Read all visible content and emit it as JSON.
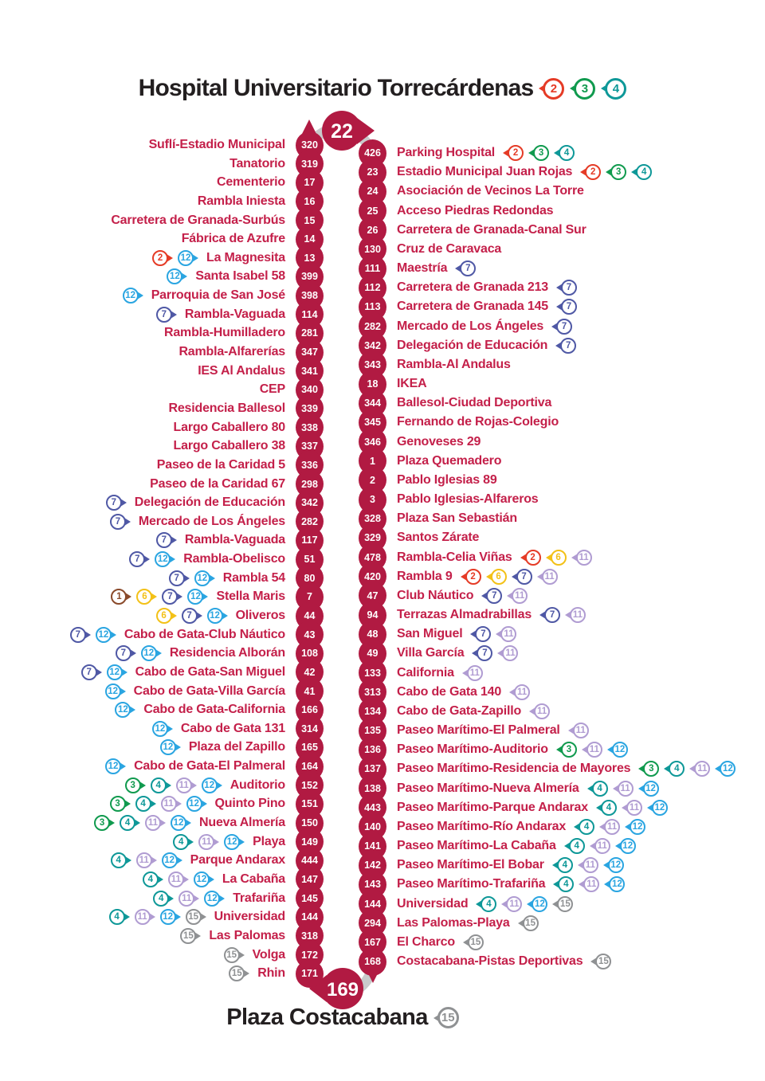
{
  "title": {
    "text": "Hospital Universitario Torrecárdenas",
    "lines": [
      "2",
      "3",
      "4"
    ]
  },
  "terminus_top": "22",
  "terminus_bottom": "169",
  "bottom_title": {
    "text": "Plaza Costacabana",
    "lines": [
      "15"
    ]
  },
  "colors": {
    "route": "#b11a42",
    "stop_text": "#c4204a",
    "arc": "#c9cacb",
    "title_text": "#231f20",
    "lines": {
      "1": "#8a4a2b",
      "2": "#e53b26",
      "3": "#109a4e",
      "4": "#0e9898",
      "6": "#f3c117",
      "7": "#4f58a5",
      "11": "#b09cd2",
      "12": "#2aa5e1",
      "15": "#8f9193"
    }
  },
  "stops": {
    "left": [
      {
        "num": "320",
        "name": "Suflí-Estadio Municipal",
        "badges": []
      },
      {
        "num": "319",
        "name": "Tanatorio",
        "badges": []
      },
      {
        "num": "17",
        "name": "Cementerio",
        "badges": []
      },
      {
        "num": "16",
        "name": "Rambla Iniesta",
        "badges": []
      },
      {
        "num": "15",
        "name": "Carretera de Granada-Surbús",
        "badges": []
      },
      {
        "num": "14",
        "name": "Fábrica de Azufre",
        "badges": []
      },
      {
        "num": "13",
        "name": "La Magnesita",
        "badges": [
          "2",
          "12"
        ]
      },
      {
        "num": "399",
        "name": "Santa Isabel 58",
        "badges": [
          "12"
        ]
      },
      {
        "num": "398",
        "name": "Parroquia de San José",
        "badges": [
          "12"
        ]
      },
      {
        "num": "114",
        "name": "Rambla-Vaguada",
        "badges": [
          "7"
        ]
      },
      {
        "num": "281",
        "name": "Rambla-Humilladero",
        "badges": []
      },
      {
        "num": "347",
        "name": "Rambla-Alfarerías",
        "badges": []
      },
      {
        "num": "341",
        "name": "IES Al Andalus",
        "badges": []
      },
      {
        "num": "340",
        "name": "CEP",
        "badges": []
      },
      {
        "num": "339",
        "name": "Residencia Ballesol",
        "badges": []
      },
      {
        "num": "338",
        "name": "Largo Caballero 80",
        "badges": []
      },
      {
        "num": "337",
        "name": "Largo Caballero 38",
        "badges": []
      },
      {
        "num": "336",
        "name": "Paseo de la Caridad 5",
        "badges": []
      },
      {
        "num": "298",
        "name": "Paseo de la Caridad 67",
        "badges": []
      },
      {
        "num": "342",
        "name": "Delegación de Educación",
        "badges": [
          "7"
        ]
      },
      {
        "num": "282",
        "name": "Mercado de Los Ángeles",
        "badges": [
          "7"
        ]
      },
      {
        "num": "117",
        "name": "Rambla-Vaguada",
        "badges": [
          "7"
        ]
      },
      {
        "num": "51",
        "name": "Rambla-Obelisco",
        "badges": [
          "7",
          "12"
        ]
      },
      {
        "num": "80",
        "name": "Rambla 54",
        "badges": [
          "7",
          "12"
        ]
      },
      {
        "num": "7",
        "name": "Stella Maris",
        "badges": [
          "1",
          "6",
          "7",
          "12"
        ]
      },
      {
        "num": "44",
        "name": "Oliveros",
        "badges": [
          "6",
          "7",
          "12"
        ]
      },
      {
        "num": "43",
        "name": "Cabo de Gata-Club Náutico",
        "badges": [
          "7",
          "12"
        ]
      },
      {
        "num": "108",
        "name": "Residencia Alborán",
        "badges": [
          "7",
          "12"
        ]
      },
      {
        "num": "42",
        "name": "Cabo de Gata-San Miguel",
        "badges": [
          "7",
          "12"
        ]
      },
      {
        "num": "41",
        "name": "Cabo de Gata-Villa García",
        "badges": [
          "12"
        ]
      },
      {
        "num": "166",
        "name": "Cabo de Gata-California",
        "badges": [
          "12"
        ]
      },
      {
        "num": "314",
        "name": "Cabo de Gata 131",
        "badges": [
          "12"
        ]
      },
      {
        "num": "165",
        "name": "Plaza del Zapillo",
        "badges": [
          "12"
        ]
      },
      {
        "num": "164",
        "name": "Cabo de Gata-El Palmeral",
        "badges": [
          "12"
        ]
      },
      {
        "num": "152",
        "name": "Auditorio",
        "badges": [
          "3",
          "4",
          "11",
          "12"
        ]
      },
      {
        "num": "151",
        "name": "Quinto Pino",
        "badges": [
          "3",
          "4",
          "11",
          "12"
        ]
      },
      {
        "num": "150",
        "name": "Nueva Almería",
        "badges": [
          "3",
          "4",
          "11",
          "12"
        ]
      },
      {
        "num": "149",
        "name": "Playa",
        "badges": [
          "4",
          "11",
          "12"
        ]
      },
      {
        "num": "444",
        "name": "Parque Andarax",
        "badges": [
          "4",
          "11",
          "12"
        ]
      },
      {
        "num": "147",
        "name": "La Cabaña",
        "badges": [
          "4",
          "11",
          "12"
        ]
      },
      {
        "num": "145",
        "name": "Trafariña",
        "badges": [
          "4",
          "11",
          "12"
        ]
      },
      {
        "num": "144",
        "name": "Universidad",
        "badges": [
          "4",
          "11",
          "12",
          "15"
        ]
      },
      {
        "num": "318",
        "name": "Las Palomas",
        "badges": [
          "15"
        ]
      },
      {
        "num": "172",
        "name": "Volga",
        "badges": [
          "15"
        ]
      },
      {
        "num": "171",
        "name": "Rhin",
        "badges": [
          "15"
        ]
      }
    ],
    "right": [
      {
        "num": "426",
        "name": "Parking Hospital",
        "badges": [
          "2",
          "3",
          "4"
        ]
      },
      {
        "num": "23",
        "name": "Estadio Municipal Juan Rojas",
        "badges": [
          "2",
          "3",
          "4"
        ]
      },
      {
        "num": "24",
        "name": "Asociación de Vecinos La Torre",
        "badges": []
      },
      {
        "num": "25",
        "name": "Acceso Piedras Redondas",
        "badges": []
      },
      {
        "num": "26",
        "name": "Carretera de Granada-Canal Sur",
        "badges": []
      },
      {
        "num": "130",
        "name": "Cruz de Caravaca",
        "badges": []
      },
      {
        "num": "111",
        "name": "Maestría",
        "badges": [
          "7"
        ]
      },
      {
        "num": "112",
        "name": "Carretera de Granada 213",
        "badges": [
          "7"
        ]
      },
      {
        "num": "113",
        "name": "Carretera de Granada 145",
        "badges": [
          "7"
        ]
      },
      {
        "num": "282",
        "name": "Mercado de Los Ángeles",
        "badges": [
          "7"
        ]
      },
      {
        "num": "342",
        "name": "Delegación de Educación",
        "badges": [
          "7"
        ]
      },
      {
        "num": "343",
        "name": "Rambla-Al Andalus",
        "badges": []
      },
      {
        "num": "18",
        "name": "IKEA",
        "badges": []
      },
      {
        "num": "344",
        "name": "Ballesol-Ciudad Deportiva",
        "badges": []
      },
      {
        "num": "345",
        "name": "Fernando de Rojas-Colegio",
        "badges": []
      },
      {
        "num": "346",
        "name": "Genoveses 29",
        "badges": []
      },
      {
        "num": "1",
        "name": "Plaza Quemadero",
        "badges": []
      },
      {
        "num": "2",
        "name": "Pablo Iglesias 89",
        "badges": []
      },
      {
        "num": "3",
        "name": "Pablo Iglesias-Alfareros",
        "badges": []
      },
      {
        "num": "328",
        "name": "Plaza San Sebastián",
        "badges": []
      },
      {
        "num": "329",
        "name": "Santos Zárate",
        "badges": []
      },
      {
        "num": "478",
        "name": "Rambla-Celia Viñas",
        "badges": [
          "2",
          "6",
          "11"
        ]
      },
      {
        "num": "420",
        "name": "Rambla 9",
        "badges": [
          "2",
          "6",
          "7",
          "11"
        ]
      },
      {
        "num": "47",
        "name": "Club Náutico",
        "badges": [
          "7",
          "11"
        ]
      },
      {
        "num": "94",
        "name": "Terrazas Almadrabillas",
        "badges": [
          "7",
          "11"
        ]
      },
      {
        "num": "48",
        "name": "San Miguel",
        "badges": [
          "7",
          "11"
        ]
      },
      {
        "num": "49",
        "name": "Villa García",
        "badges": [
          "7",
          "11"
        ]
      },
      {
        "num": "133",
        "name": "California",
        "badges": [
          "11"
        ]
      },
      {
        "num": "313",
        "name": "Cabo de Gata 140",
        "badges": [
          "11"
        ]
      },
      {
        "num": "134",
        "name": "Cabo de Gata-Zapillo",
        "badges": [
          "11"
        ]
      },
      {
        "num": "135",
        "name": "Paseo Marítimo-El Palmeral",
        "badges": [
          "11"
        ]
      },
      {
        "num": "136",
        "name": "Paseo Marítimo-Auditorio",
        "badges": [
          "3",
          "11",
          "12"
        ]
      },
      {
        "num": "137",
        "name": "Paseo Marítimo-Residencia de Mayores",
        "badges": [
          "3",
          "4",
          "11",
          "12"
        ]
      },
      {
        "num": "138",
        "name": "Paseo Marítimo-Nueva Almería",
        "badges": [
          "4",
          "11",
          "12"
        ]
      },
      {
        "num": "443",
        "name": "Paseo Marítimo-Parque Andarax",
        "badges": [
          "4",
          "11",
          "12"
        ]
      },
      {
        "num": "140",
        "name": "Paseo Marítimo-Río Andarax",
        "badges": [
          "4",
          "11",
          "12"
        ]
      },
      {
        "num": "141",
        "name": "Paseo Marítimo-La Cabaña",
        "badges": [
          "4",
          "11",
          "12"
        ]
      },
      {
        "num": "142",
        "name": "Paseo Marítimo-El Bobar",
        "badges": [
          "4",
          "11",
          "12"
        ]
      },
      {
        "num": "143",
        "name": "Paseo Marítimo-Trafariña",
        "badges": [
          "4",
          "11",
          "12"
        ]
      },
      {
        "num": "144",
        "name": "Universidad",
        "badges": [
          "4",
          "11",
          "12",
          "15"
        ]
      },
      {
        "num": "294",
        "name": "Las Palomas-Playa",
        "badges": [
          "15"
        ]
      },
      {
        "num": "167",
        "name": "El Charco",
        "badges": [
          "15"
        ]
      },
      {
        "num": "168",
        "name": "Costacabana-Pistas Deportivas",
        "badges": [
          "15"
        ]
      }
    ]
  }
}
